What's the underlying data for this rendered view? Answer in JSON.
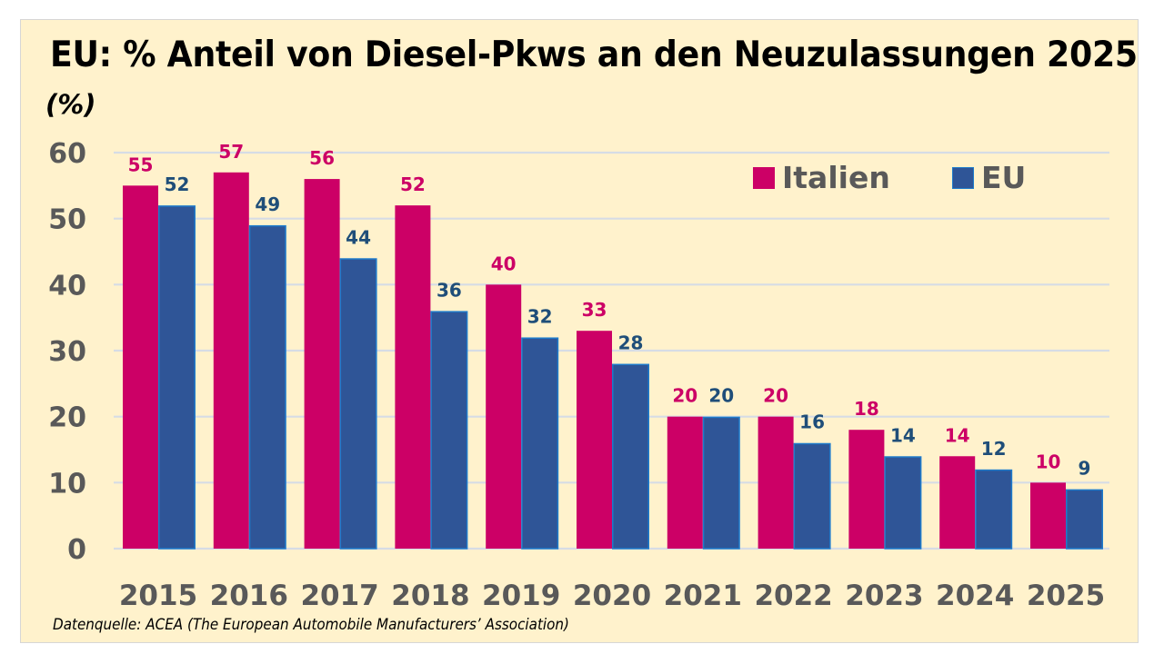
{
  "chart_data": {
    "type": "bar",
    "title": "EU: % Anteil von Diesel-Pkws an den Neuzulassungen 2025",
    "ylabel": "(%)",
    "xlabel": "",
    "categories": [
      "2015",
      "2016",
      "2017",
      "2018",
      "2019",
      "2020",
      "2021",
      "2022",
      "2023",
      "2024",
      "2025"
    ],
    "series": [
      {
        "name": "Italien",
        "color": "#CC0066",
        "label_color": "#CC0066",
        "values": [
          55,
          57,
          56,
          52,
          40,
          33,
          20,
          20,
          18,
          14,
          10
        ]
      },
      {
        "name": "EU",
        "color": "#2F5597",
        "border_color": "#1E7BCB",
        "label_color": "#1F4E79",
        "values": [
          52,
          49,
          44,
          36,
          32,
          28,
          20,
          16,
          14,
          12,
          9
        ]
      }
    ],
    "ylim": [
      0,
      60
    ],
    "yticks": [
      "0",
      "10",
      "20",
      "30",
      "40",
      "50",
      "60"
    ],
    "grid": true,
    "legend_position": "top-right",
    "source": "Datenquelle: ACEA (The European Automobile Manufacturers’ Association)"
  },
  "colors": {
    "background": "#FFF2CC",
    "gridline": "#D6DCE5",
    "axis_text": "#595959"
  }
}
